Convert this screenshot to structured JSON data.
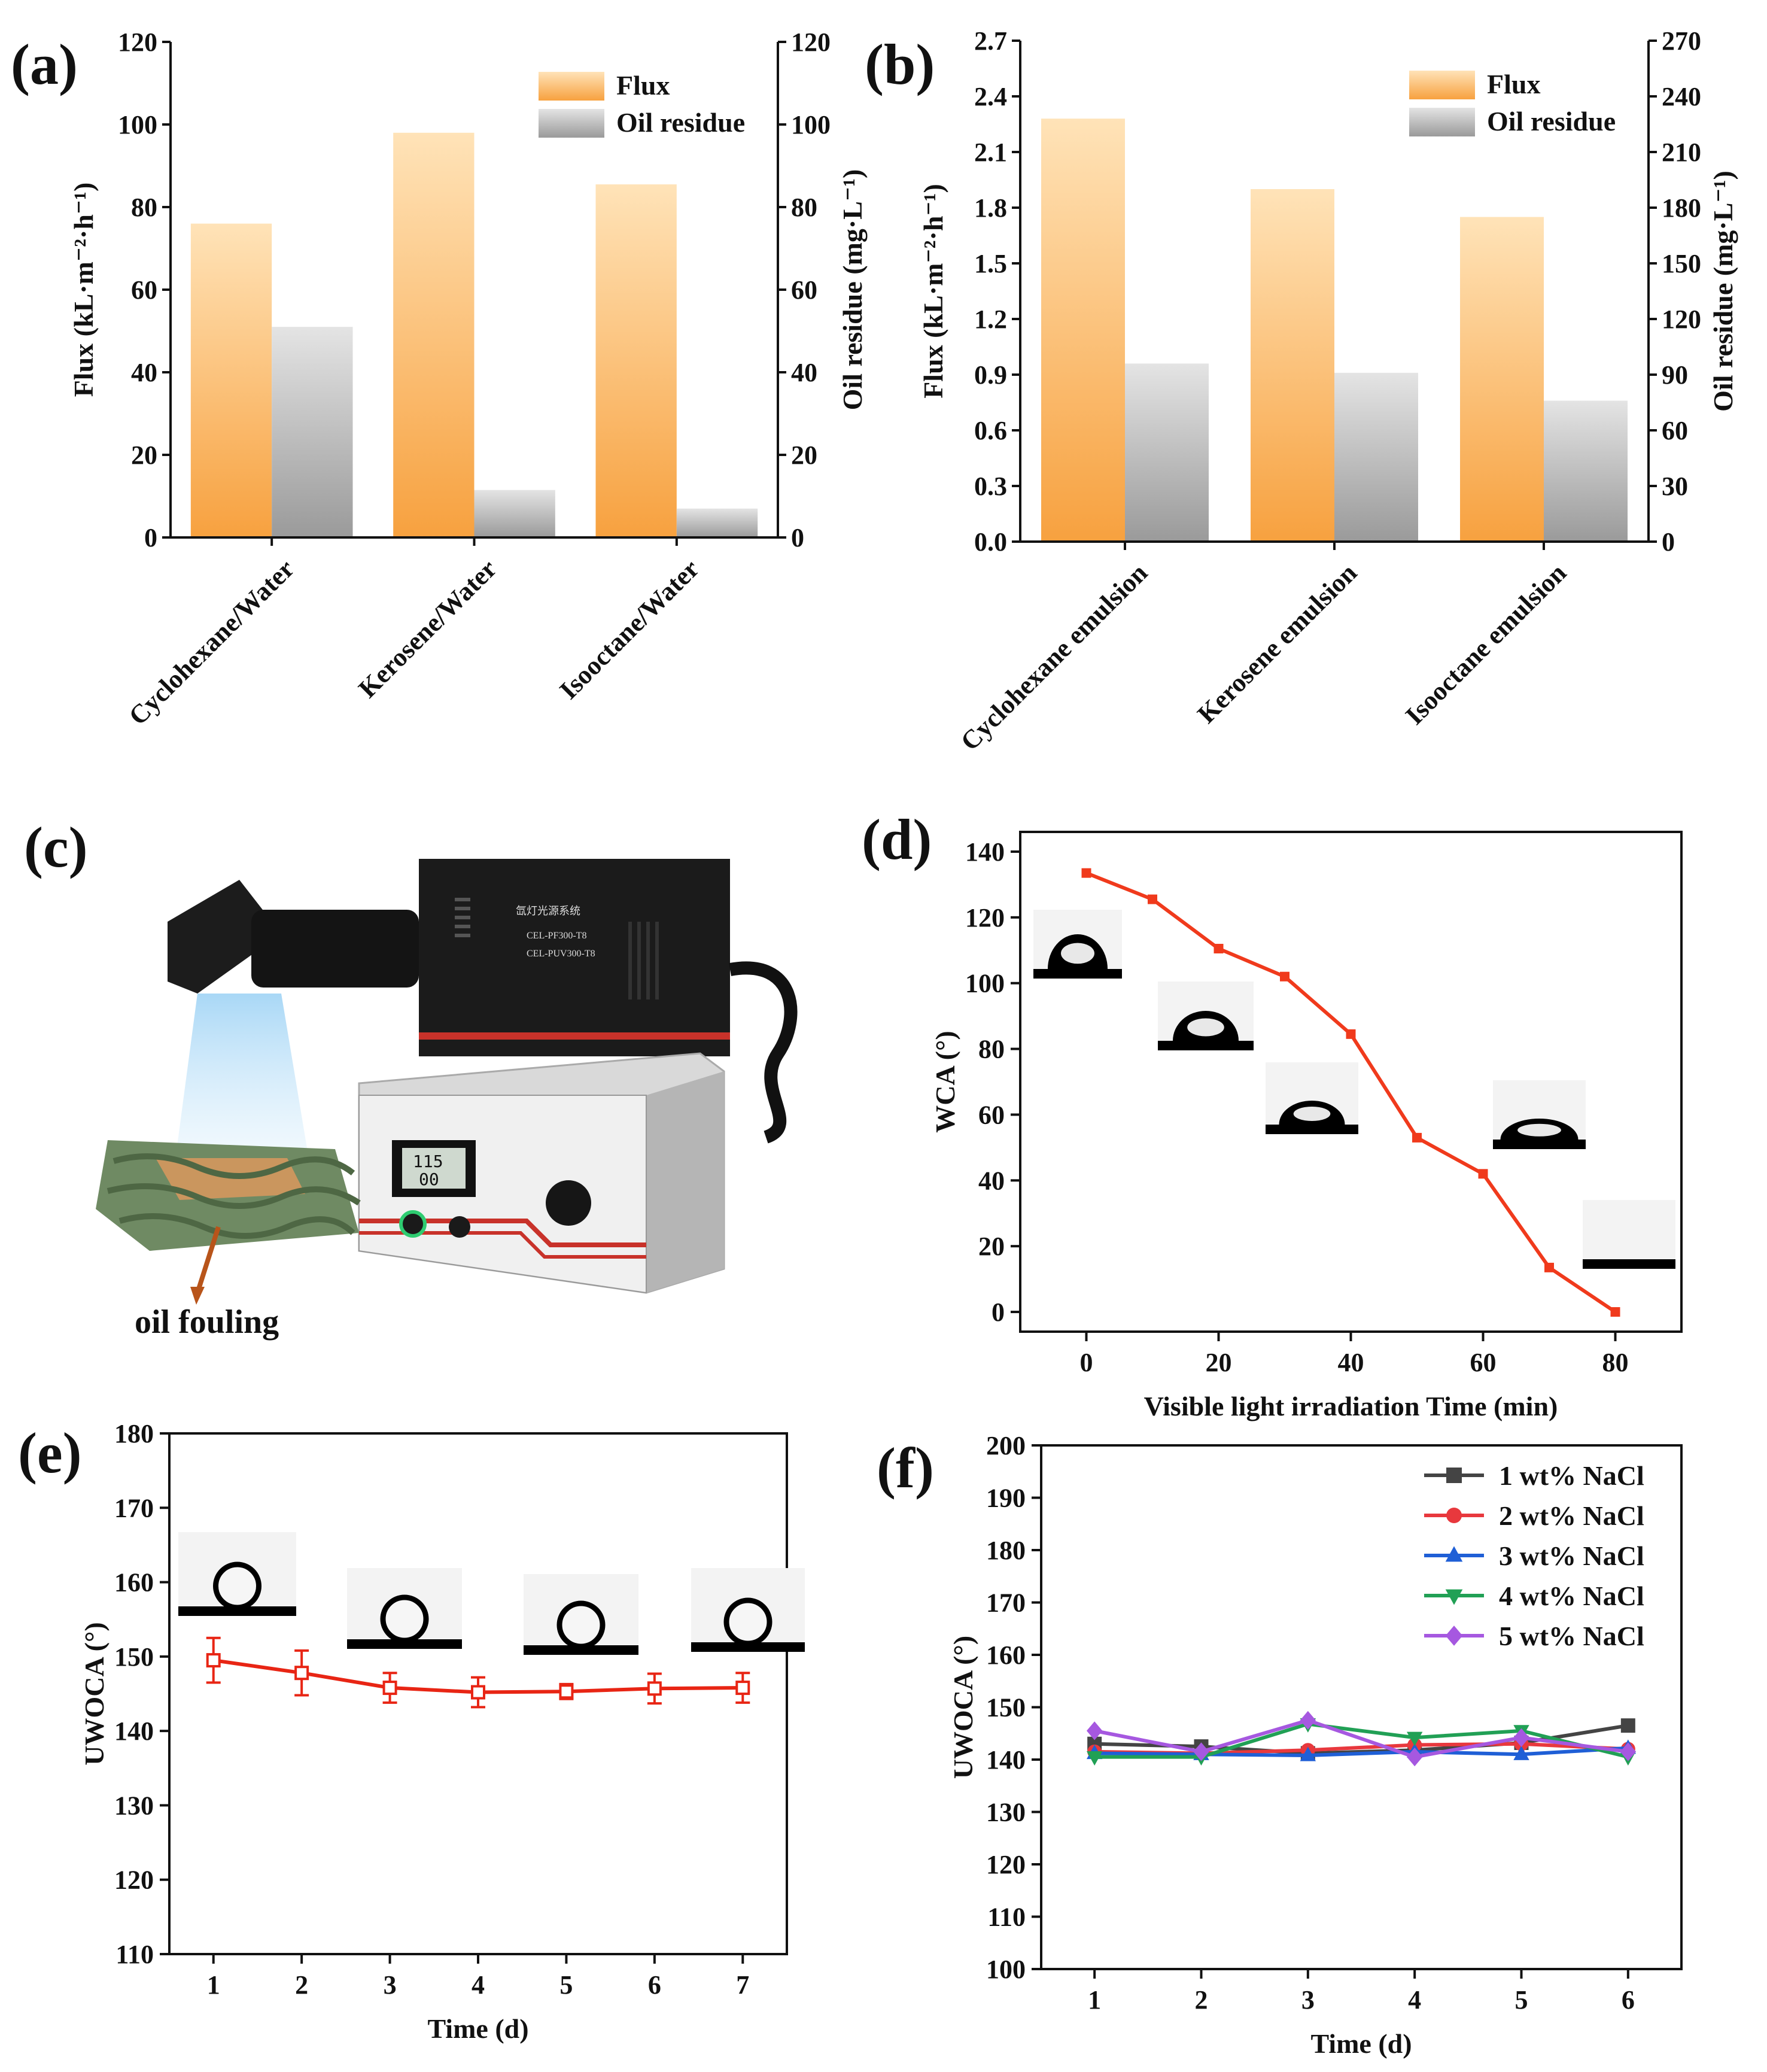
{
  "colors": {
    "flux_top": "#ffe3b8",
    "flux_bottom": "#f7a13f",
    "oil_top": "#e2e2e2",
    "oil_bottom": "#9a9a9a",
    "wca_line": "#f03a1c",
    "uwoca_line": "#e82514",
    "s1": "#444444",
    "s2": "#e8383d",
    "s3": "#1f5fd6",
    "s4": "#21a055",
    "s5": "#a658e0"
  },
  "panels": {
    "a": "(a)",
    "b": "(b)",
    "c": "(c)",
    "d": "(d)",
    "e": "(e)",
    "f": "(f)"
  },
  "photo_c": {
    "label": "oil fouling",
    "device_line1": "氙灯光源系统",
    "device_line2": "CEL-PF300-T8",
    "device_line3": "CEL-PUV300-T8",
    "display_line1": "115",
    "display_line2": "00"
  },
  "chart_data": [
    {
      "panel": "a",
      "type": "bar",
      "categories": [
        "Cyclohexane/Water",
        "Kerosene/Water",
        "Isooctane/Water"
      ],
      "series": [
        {
          "name": "Flux",
          "axis": "left",
          "values": [
            76,
            98,
            85.5
          ]
        },
        {
          "name": "Oil residue",
          "axis": "right",
          "values": [
            51,
            11.5,
            7
          ]
        }
      ],
      "ylabel": "Flux (kL·m⁻²·h⁻¹)",
      "y2label": "Oil residue (mg·L⁻¹)",
      "ylim": [
        0,
        120
      ],
      "y2lim": [
        0,
        120
      ],
      "yticks": [
        "0",
        "20",
        "40",
        "60",
        "80",
        "100",
        "120"
      ],
      "y2ticks": [
        "0",
        "20",
        "40",
        "60",
        "80",
        "100",
        "120"
      ],
      "legend": "top-right"
    },
    {
      "panel": "b",
      "type": "bar",
      "categories": [
        "Cyclohexane emulsion",
        "Kerosene emulsion",
        "Isooctane emulsion"
      ],
      "series": [
        {
          "name": "Flux",
          "axis": "left",
          "values": [
            2.28,
            1.9,
            1.75
          ]
        },
        {
          "name": "Oil residue",
          "axis": "right",
          "values": [
            96,
            91,
            76
          ]
        }
      ],
      "ylabel": "Flux (kL·m⁻²·h⁻¹)",
      "y2label": "Oil residue (mg·L⁻¹)",
      "ylim": [
        0,
        2.7
      ],
      "y2lim": [
        0,
        270
      ],
      "yticks": [
        "0.0",
        "0.3",
        "0.6",
        "0.9",
        "1.2",
        "1.5",
        "1.8",
        "2.1",
        "2.4",
        "2.7"
      ],
      "y2ticks": [
        "0",
        "30",
        "60",
        "90",
        "120",
        "150",
        "180",
        "210",
        "240",
        "270"
      ],
      "legend": "top-right"
    },
    {
      "panel": "d",
      "type": "line",
      "x": [
        0,
        10,
        20,
        30,
        40,
        50,
        60,
        70,
        80
      ],
      "series": [
        {
          "name": "WCA",
          "values": [
            133.5,
            125.5,
            110.5,
            102,
            84.5,
            53,
            42,
            13.5,
            0
          ]
        }
      ],
      "xlabel": "Visible light irradiation Time (min)",
      "ylabel": "WCA (°)",
      "xlim": [
        -10,
        90
      ],
      "ylim": [
        -6,
        146
      ],
      "xticks": [
        "0",
        "20",
        "40",
        "60",
        "80"
      ],
      "yticks": [
        "0",
        "20",
        "40",
        "60",
        "80",
        "100",
        "120",
        "140"
      ]
    },
    {
      "panel": "e",
      "type": "line",
      "x": [
        1,
        2,
        3,
        4,
        5,
        6,
        7
      ],
      "series": [
        {
          "name": "UWOCA",
          "values": [
            149.5,
            147.8,
            145.8,
            145.2,
            145.3,
            145.7,
            145.8
          ],
          "errors": [
            3,
            3,
            2,
            2,
            1,
            2,
            2
          ]
        }
      ],
      "xlabel": "Time (d)",
      "ylabel": "UWOCA (°)",
      "xlim": [
        0.5,
        7.5
      ],
      "ylim": [
        110,
        180
      ],
      "xticks": [
        "1",
        "2",
        "3",
        "4",
        "5",
        "6",
        "7"
      ],
      "yticks": [
        "110",
        "120",
        "130",
        "140",
        "150",
        "160",
        "170",
        "180"
      ]
    },
    {
      "panel": "f",
      "type": "line",
      "x": [
        1,
        2,
        3,
        4,
        5,
        6
      ],
      "series": [
        {
          "name": "1 wt% NaCl",
          "marker": "square",
          "values": [
            143,
            142.5,
            141.2,
            141.8,
            143.2,
            146.5
          ]
        },
        {
          "name": "2 wt% NaCl",
          "marker": "circle",
          "values": [
            141.5,
            141.2,
            141.8,
            142.8,
            143,
            142
          ]
        },
        {
          "name": "3 wt% NaCl",
          "marker": "triangle-up",
          "values": [
            141.2,
            141,
            140.8,
            141.5,
            141,
            142.2
          ]
        },
        {
          "name": "4 wt% NaCl",
          "marker": "triangle-down",
          "values": [
            140.5,
            140.5,
            146.8,
            144.2,
            145.5,
            140.5
          ]
        },
        {
          "name": "5 wt% NaCl",
          "marker": "diamond",
          "values": [
            145.5,
            141.5,
            147.5,
            140.5,
            144.2,
            141.5
          ]
        }
      ],
      "xlabel": "Time (d)",
      "ylabel": "UWOCA (°)",
      "xlim": [
        0.5,
        6.5
      ],
      "ylim": [
        100,
        200
      ],
      "xticks": [
        "1",
        "2",
        "3",
        "4",
        "5",
        "6"
      ],
      "yticks": [
        "100",
        "110",
        "120",
        "130",
        "140",
        "150",
        "160",
        "170",
        "180",
        "190",
        "200"
      ],
      "legend": "top-right"
    }
  ]
}
